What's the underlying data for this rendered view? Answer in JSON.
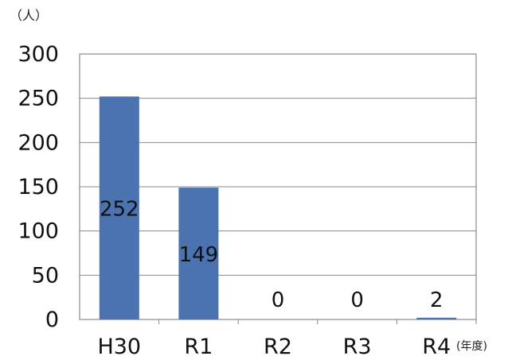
{
  "chart_data": {
    "type": "bar",
    "categories": [
      "H30",
      "R1",
      "R2",
      "R3",
      "R4"
    ],
    "values": [
      252,
      149,
      0,
      0,
      2
    ],
    "data_labels": [
      "252",
      "149",
      "0",
      "0",
      "2"
    ],
    "y_unit_label": "（人）",
    "x_unit_label": "(年度)",
    "ylim": [
      0,
      300
    ],
    "yticks": [
      "0",
      "50",
      "100",
      "150",
      "200",
      "250",
      "300"
    ],
    "grid": true,
    "bar_color": "#4a73b0",
    "legend": "none"
  }
}
